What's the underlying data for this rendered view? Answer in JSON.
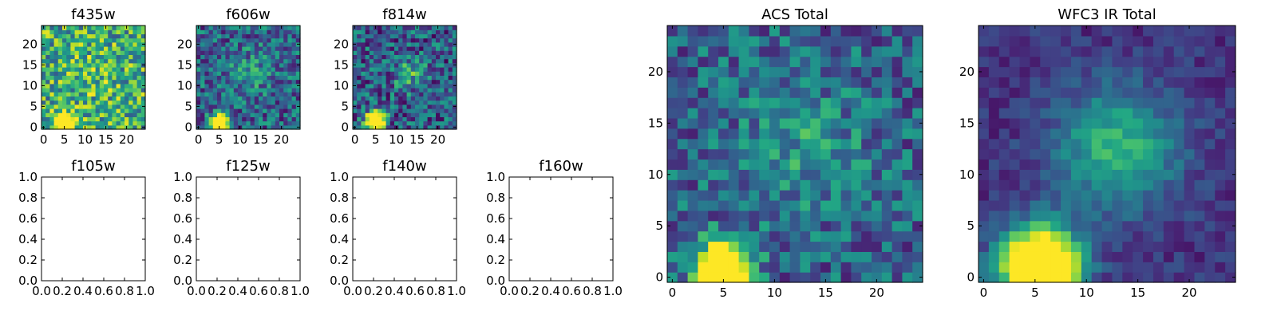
{
  "colormap": "viridis",
  "chart_data": [
    {
      "id": "f435w",
      "type": "heatmap",
      "title": "f435w",
      "grid_size": 25,
      "xlim": [
        -0.5,
        24.5
      ],
      "ylim": [
        -0.5,
        24.5
      ],
      "xticks": [
        "0",
        "5",
        "10",
        "15",
        "20"
      ],
      "yticks": [
        "0",
        "5",
        "10",
        "15",
        "20"
      ],
      "source": {
        "x": 5,
        "y": 1,
        "peak": 0.95,
        "radius": 1.6
      },
      "galaxy": {
        "x": 13,
        "y": 13,
        "peak": 0.1,
        "radius": 4
      },
      "background": 0.62,
      "noise": 0.34
    },
    {
      "id": "f606w",
      "type": "heatmap",
      "title": "f606w",
      "grid_size": 25,
      "xlim": [
        -0.5,
        24.5
      ],
      "ylim": [
        -0.5,
        24.5
      ],
      "xticks": [
        "0",
        "5",
        "10",
        "15",
        "20"
      ],
      "yticks": [
        "0",
        "5",
        "10",
        "15",
        "20"
      ],
      "source": {
        "x": 5,
        "y": 1,
        "peak": 1.0,
        "radius": 1.4
      },
      "galaxy": {
        "x": 13,
        "y": 13,
        "peak": 0.15,
        "radius": 4
      },
      "background": 0.33,
      "noise": 0.28
    },
    {
      "id": "f814w",
      "type": "heatmap",
      "title": "f814w",
      "grid_size": 25,
      "xlim": [
        -0.5,
        24.5
      ],
      "ylim": [
        -0.5,
        24.5
      ],
      "xticks": [
        "0",
        "5",
        "10",
        "15",
        "20"
      ],
      "yticks": [
        "0",
        "5",
        "10",
        "15",
        "20"
      ],
      "source": {
        "x": 5,
        "y": 1.5,
        "peak": 1.0,
        "radius": 1.5
      },
      "galaxy": {
        "x": 13,
        "y": 13,
        "peak": 0.32,
        "radius": 2.6
      },
      "background": 0.3,
      "noise": 0.3
    },
    {
      "id": "f105w",
      "type": "empty",
      "title": "f105w",
      "xlim": [
        0,
        1
      ],
      "ylim": [
        0,
        1
      ],
      "xticks": [
        "0.0",
        "0.2",
        "0.4",
        "0.6",
        "0.8",
        "1.0"
      ],
      "yticks": [
        "0.0",
        "0.2",
        "0.4",
        "0.6",
        "0.8",
        "1.0"
      ]
    },
    {
      "id": "f125w",
      "type": "empty",
      "title": "f125w",
      "xlim": [
        0,
        1
      ],
      "ylim": [
        0,
        1
      ],
      "xticks": [
        "0.0",
        "0.2",
        "0.4",
        "0.6",
        "0.8",
        "1.0"
      ],
      "yticks": [
        "0.0",
        "0.2",
        "0.4",
        "0.6",
        "0.8",
        "1.0"
      ]
    },
    {
      "id": "f140w",
      "type": "empty",
      "title": "f140w",
      "xlim": [
        0,
        1
      ],
      "ylim": [
        0,
        1
      ],
      "xticks": [
        "0.0",
        "0.2",
        "0.4",
        "0.6",
        "0.8",
        "1.0"
      ],
      "yticks": [
        "0.0",
        "0.2",
        "0.4",
        "0.6",
        "0.8",
        "1.0"
      ]
    },
    {
      "id": "f160w",
      "type": "empty",
      "title": "f160w",
      "xlim": [
        0,
        1
      ],
      "ylim": [
        0,
        1
      ],
      "xticks": [
        "0.0",
        "0.2",
        "0.4",
        "0.6",
        "0.8",
        "1.0"
      ],
      "yticks": [
        "0.0",
        "0.2",
        "0.4",
        "0.6",
        "0.8",
        "1.0"
      ]
    },
    {
      "id": "acs-total",
      "type": "heatmap",
      "title": "ACS Total",
      "grid_size": 25,
      "xlim": [
        -0.5,
        24.5
      ],
      "ylim": [
        -0.5,
        24.5
      ],
      "xticks": [
        "0",
        "5",
        "10",
        "15",
        "20"
      ],
      "yticks": [
        "0",
        "5",
        "10",
        "15",
        "20"
      ],
      "source": {
        "x": 5,
        "y": 1,
        "peak": 1.0,
        "radius": 1.7
      },
      "galaxy": {
        "x": 13,
        "y": 12.5,
        "peak": 0.2,
        "radius": 4.5
      },
      "background": 0.32,
      "noise": 0.24
    },
    {
      "id": "wfc3-ir-total",
      "type": "heatmap",
      "title": "WFC3 IR Total",
      "grid_size": 25,
      "xlim": [
        -0.5,
        24.5
      ],
      "ylim": [
        -0.5,
        24.5
      ],
      "xticks": [
        "0",
        "5",
        "10",
        "15",
        "20"
      ],
      "yticks": [
        "0",
        "5",
        "10",
        "15",
        "20"
      ],
      "source": {
        "x": 5.5,
        "y": 1,
        "peak": 1.0,
        "radius": 2.6
      },
      "galaxy": {
        "x": 13,
        "y": 12.5,
        "peak": 0.52,
        "radius": 4.2
      },
      "background": 0.15,
      "noise": 0.1
    }
  ]
}
